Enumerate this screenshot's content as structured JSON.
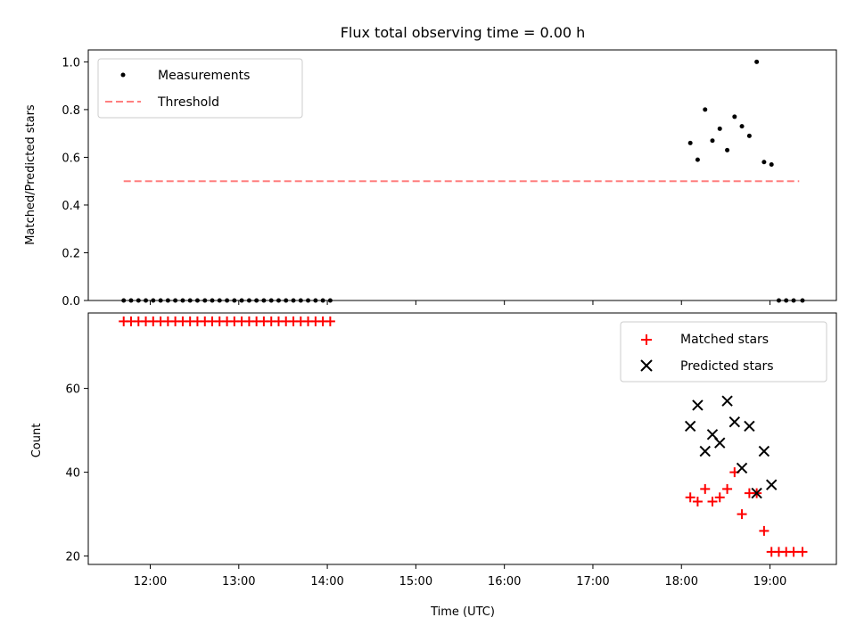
{
  "chart_data": {
    "type": "scatter",
    "title": "Flux total observing time = 0.00 h",
    "x_ticks": [
      "12:00",
      "13:00",
      "14:00",
      "15:00",
      "16:00",
      "17:00",
      "18:00",
      "19:00"
    ],
    "x_tick_hours": [
      12,
      13,
      14,
      15,
      16,
      17,
      18,
      19
    ],
    "x_range_hours": [
      11.3,
      19.75
    ],
    "xlabel": "Time (UTC)",
    "panels": [
      {
        "ylabel": "Matched/Predicted stars",
        "ylim": [
          0,
          1.05
        ],
        "y_ticks": [
          "0.0",
          "0.2",
          "0.4",
          "0.6",
          "0.8",
          "1.0"
        ],
        "y_tick_values": [
          0,
          0.2,
          0.4,
          0.6,
          0.8,
          1.0
        ],
        "legend_position": "upper left",
        "series": [
          {
            "name": "Measurements",
            "marker": "dot",
            "color": "#000000",
            "x": [
              11.7,
              11.783,
              11.867,
              11.95,
              12.033,
              12.117,
              12.2,
              12.283,
              12.367,
              12.45,
              12.533,
              12.617,
              12.7,
              12.783,
              12.867,
              12.95,
              13.033,
              13.117,
              13.2,
              13.283,
              13.367,
              13.45,
              13.533,
              13.617,
              13.7,
              13.783,
              13.867,
              13.95,
              14.033,
              18.1,
              18.183,
              18.267,
              18.35,
              18.433,
              18.517,
              18.6,
              18.683,
              18.767,
              18.85,
              18.933,
              19.017,
              19.1,
              19.183,
              19.267,
              19.367
            ],
            "y": [
              0,
              0,
              0,
              0,
              0,
              0,
              0,
              0,
              0,
              0,
              0,
              0,
              0,
              0,
              0,
              0,
              0,
              0,
              0,
              0,
              0,
              0,
              0,
              0,
              0,
              0,
              0,
              0,
              0,
              0.66,
              0.59,
              0.8,
              0.67,
              0.72,
              0.63,
              0.77,
              0.73,
              0.69,
              1.0,
              0.58,
              0.57,
              0,
              0,
              0,
              0
            ]
          },
          {
            "name": "Threshold",
            "marker": "dashed-line",
            "color": "#ff7f7f",
            "x": [
              11.7,
              19.33
            ],
            "y": [
              0.5,
              0.5
            ]
          }
        ]
      },
      {
        "ylabel": "Count",
        "ylim": [
          18,
          78
        ],
        "y_ticks": [
          "20",
          "40",
          "60"
        ],
        "y_tick_values": [
          20,
          40,
          60
        ],
        "legend_position": "upper right",
        "series": [
          {
            "name": "Matched stars",
            "marker": "plus",
            "color": "#ff0000",
            "x": [
              11.7,
              11.783,
              11.867,
              11.95,
              12.033,
              12.117,
              12.2,
              12.283,
              12.367,
              12.45,
              12.533,
              12.617,
              12.7,
              12.783,
              12.867,
              12.95,
              13.033,
              13.117,
              13.2,
              13.283,
              13.367,
              13.45,
              13.533,
              13.617,
              13.7,
              13.783,
              13.867,
              13.95,
              14.033,
              18.1,
              18.183,
              18.267,
              18.35,
              18.433,
              18.517,
              18.6,
              18.683,
              18.767,
              18.85,
              18.933,
              19.017,
              19.1,
              19.183,
              19.267,
              19.367
            ],
            "y": [
              76,
              76,
              76,
              76,
              76,
              76,
              76,
              76,
              76,
              76,
              76,
              76,
              76,
              76,
              76,
              76,
              76,
              76,
              76,
              76,
              76,
              76,
              76,
              76,
              76,
              76,
              76,
              76,
              76,
              34,
              33,
              36,
              33,
              34,
              36,
              40,
              30,
              35,
              35,
              26,
              21,
              21,
              21,
              21,
              21
            ]
          },
          {
            "name": "Predicted stars",
            "marker": "x",
            "color": "#000000",
            "x": [
              18.1,
              18.183,
              18.267,
              18.35,
              18.433,
              18.517,
              18.6,
              18.683,
              18.767,
              18.85,
              18.933,
              19.017
            ],
            "y": [
              51,
              56,
              45,
              49,
              47,
              57,
              52,
              41,
              51,
              35,
              45,
              37
            ]
          }
        ]
      }
    ]
  }
}
